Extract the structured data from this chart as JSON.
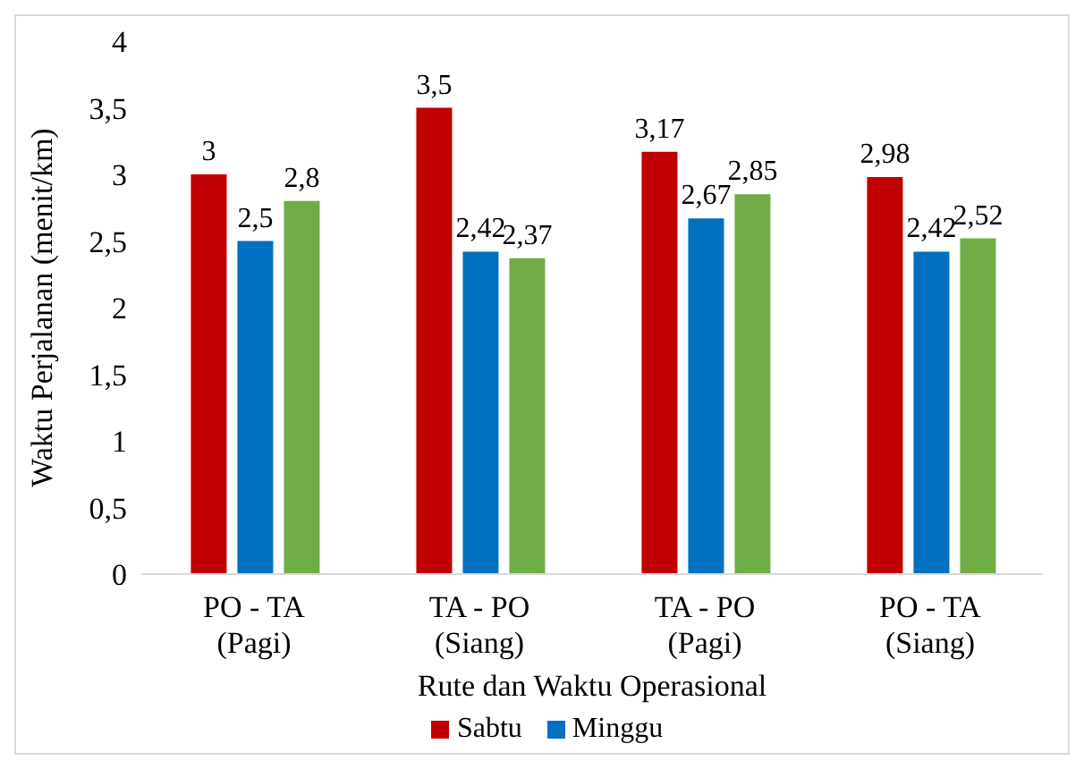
{
  "chart_data": {
    "type": "bar",
    "xlabel": "Rute dan Waktu Operasional",
    "ylabel": "Waktu Perjalanan (menit/km)",
    "categories": [
      "PO - TA\n(Pagi)",
      "TA - PO\n(Siang)",
      "TA - PO\n(Pagi)",
      "PO - TA\n(Siang)"
    ],
    "series": [
      {
        "name": "Sabtu",
        "color": "#c00000",
        "values": [
          3,
          3.5,
          3.17,
          2.98
        ],
        "value_labels": [
          "3",
          "3,5",
          "3,17",
          "2,98"
        ]
      },
      {
        "name": "Minggu",
        "color": "#0070c0",
        "values": [
          2.5,
          2.42,
          2.67,
          2.42
        ],
        "value_labels": [
          "2,5",
          "2,42",
          "2,67",
          "2,42"
        ]
      },
      {
        "color": "#70ad47",
        "values": [
          2.8,
          2.37,
          2.85,
          2.52
        ],
        "value_labels": [
          "2,8",
          "2,37",
          "2,85",
          "2,52"
        ]
      }
    ],
    "ylim": [
      0,
      4
    ],
    "yticks": [
      0,
      {
        "value": 0.5,
        "label": "0,5"
      },
      1,
      {
        "value": 1.5,
        "label": "1,5"
      },
      2,
      {
        "value": 2.5,
        "label": "2,5"
      },
      3,
      {
        "value": 3.5,
        "label": "3,5"
      },
      4
    ],
    "grid": false,
    "legend": "bottom"
  }
}
